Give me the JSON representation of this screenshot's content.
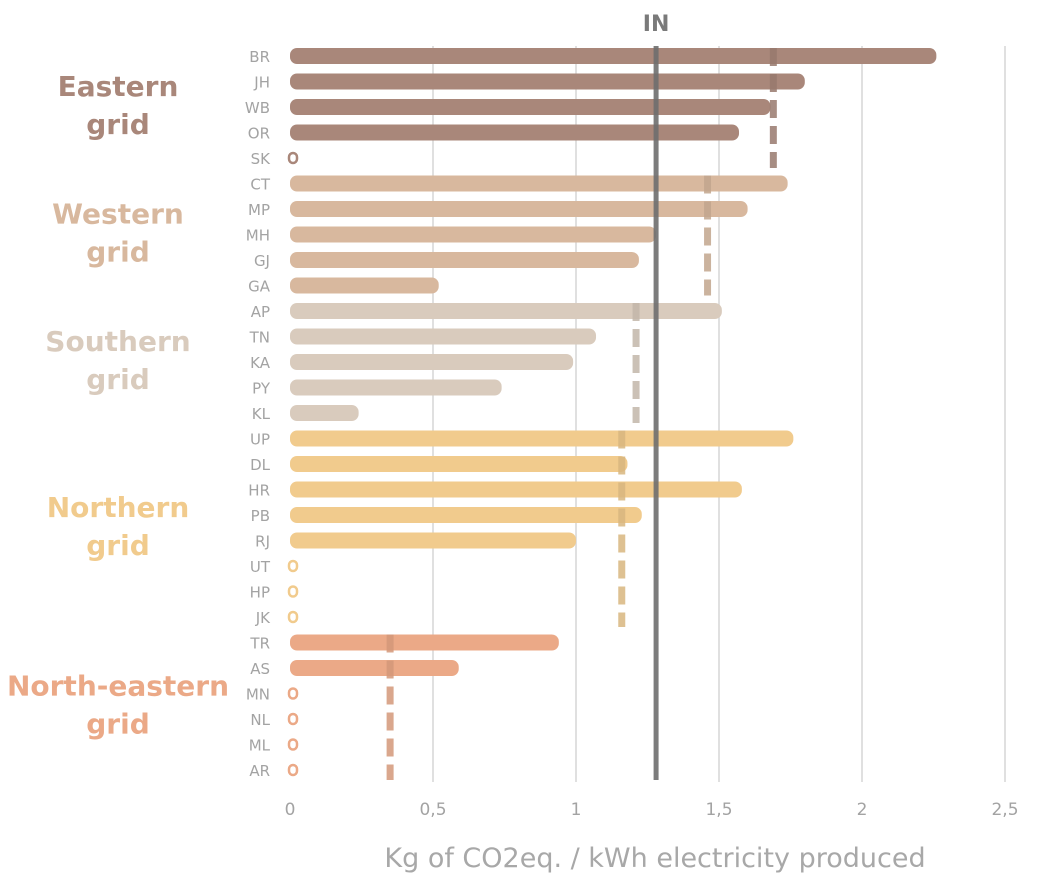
{
  "chart_data": {
    "type": "bar",
    "orientation": "horizontal",
    "title": "",
    "xlabel": "Kg of CO2eq. / kWh electricity produced",
    "xlim": [
      0,
      2.5
    ],
    "x_ticks": [
      {
        "value": 0,
        "label": "0"
      },
      {
        "value": 0.5,
        "label": "0,5"
      },
      {
        "value": 1,
        "label": "1"
      },
      {
        "value": 1.5,
        "label": "1,5"
      },
      {
        "value": 2,
        "label": "2"
      },
      {
        "value": 2.5,
        "label": "2,5"
      }
    ],
    "grid": true,
    "reference_line": {
      "label": "IN",
      "value": 1.28,
      "color": "#6e6e6e"
    },
    "groups": [
      {
        "name_lines": [
          "Eastern",
          "grid"
        ],
        "color": "#a9877a",
        "average": 1.69,
        "states": [
          {
            "code": "BR",
            "value": 2.26
          },
          {
            "code": "JH",
            "value": 1.8
          },
          {
            "code": "WB",
            "value": 1.68
          },
          {
            "code": "OR",
            "value": 1.57
          },
          {
            "code": "SK",
            "value": 0
          }
        ]
      },
      {
        "name_lines": [
          "Western",
          "grid"
        ],
        "color": "#d8b89e",
        "average": 1.46,
        "states": [
          {
            "code": "CT",
            "value": 1.74
          },
          {
            "code": "MP",
            "value": 1.6
          },
          {
            "code": "MH",
            "value": 1.28
          },
          {
            "code": "GJ",
            "value": 1.22
          },
          {
            "code": "GA",
            "value": 0.52
          }
        ]
      },
      {
        "name_lines": [
          "Southern",
          "grid"
        ],
        "color": "#d9cbbd",
        "average": 1.21,
        "states": [
          {
            "code": "AP",
            "value": 1.51
          },
          {
            "code": "TN",
            "value": 1.07
          },
          {
            "code": "KA",
            "value": 0.99
          },
          {
            "code": "PY",
            "value": 0.74
          },
          {
            "code": "KL",
            "value": 0.24
          }
        ]
      },
      {
        "name_lines": [
          "Northern",
          "grid"
        ],
        "color": "#f1cb8d",
        "average": 1.16,
        "states": [
          {
            "code": "UP",
            "value": 1.76
          },
          {
            "code": "DL",
            "value": 1.18
          },
          {
            "code": "HR",
            "value": 1.58
          },
          {
            "code": "PB",
            "value": 1.23
          },
          {
            "code": "RJ",
            "value": 1.0
          },
          {
            "code": "UT",
            "value": 0
          },
          {
            "code": "HP",
            "value": 0
          },
          {
            "code": "JK",
            "value": 0
          }
        ]
      },
      {
        "name_lines": [
          "North-eastern",
          "grid"
        ],
        "color": "#eba987",
        "average": 0.35,
        "states": [
          {
            "code": "TR",
            "value": 0.94
          },
          {
            "code": "AS",
            "value": 0.59
          },
          {
            "code": "MN",
            "value": 0
          },
          {
            "code": "NL",
            "value": 0
          },
          {
            "code": "ML",
            "value": 0
          },
          {
            "code": "AR",
            "value": 0
          }
        ]
      }
    ]
  }
}
